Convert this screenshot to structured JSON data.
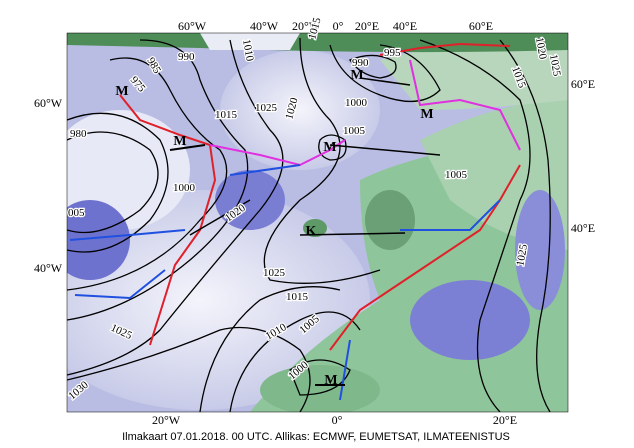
{
  "graticule": {
    "top": [
      "60°W",
      "40°W",
      "20°W",
      "0°",
      "20°E",
      "40°E",
      "60°E"
    ],
    "left": [
      "60°W",
      "40°W"
    ],
    "right": [
      "60°E",
      "40°E"
    ],
    "bottom": [
      "20°W",
      "0°",
      "20°E"
    ]
  },
  "isobar_labels": [
    "990",
    "985",
    "975",
    "1010",
    "1015",
    "990",
    "995",
    "1020",
    "1025",
    "1015",
    "1000",
    "1015",
    "1025",
    "1020",
    "980",
    "1005",
    "1000",
    "1005",
    "1020",
    "005",
    "1025",
    "1025",
    "1015",
    "1010",
    "1005",
    "1025",
    "1000",
    "1030"
  ],
  "pressure_centers": [
    "M",
    "M",
    "M",
    "M",
    "M",
    "K",
    "M"
  ],
  "caption": "Ilmakaart 07.01.2018. 00 UTC. Allikas: ECMWF, EUMETSAT, ILMATEENISTUS"
}
